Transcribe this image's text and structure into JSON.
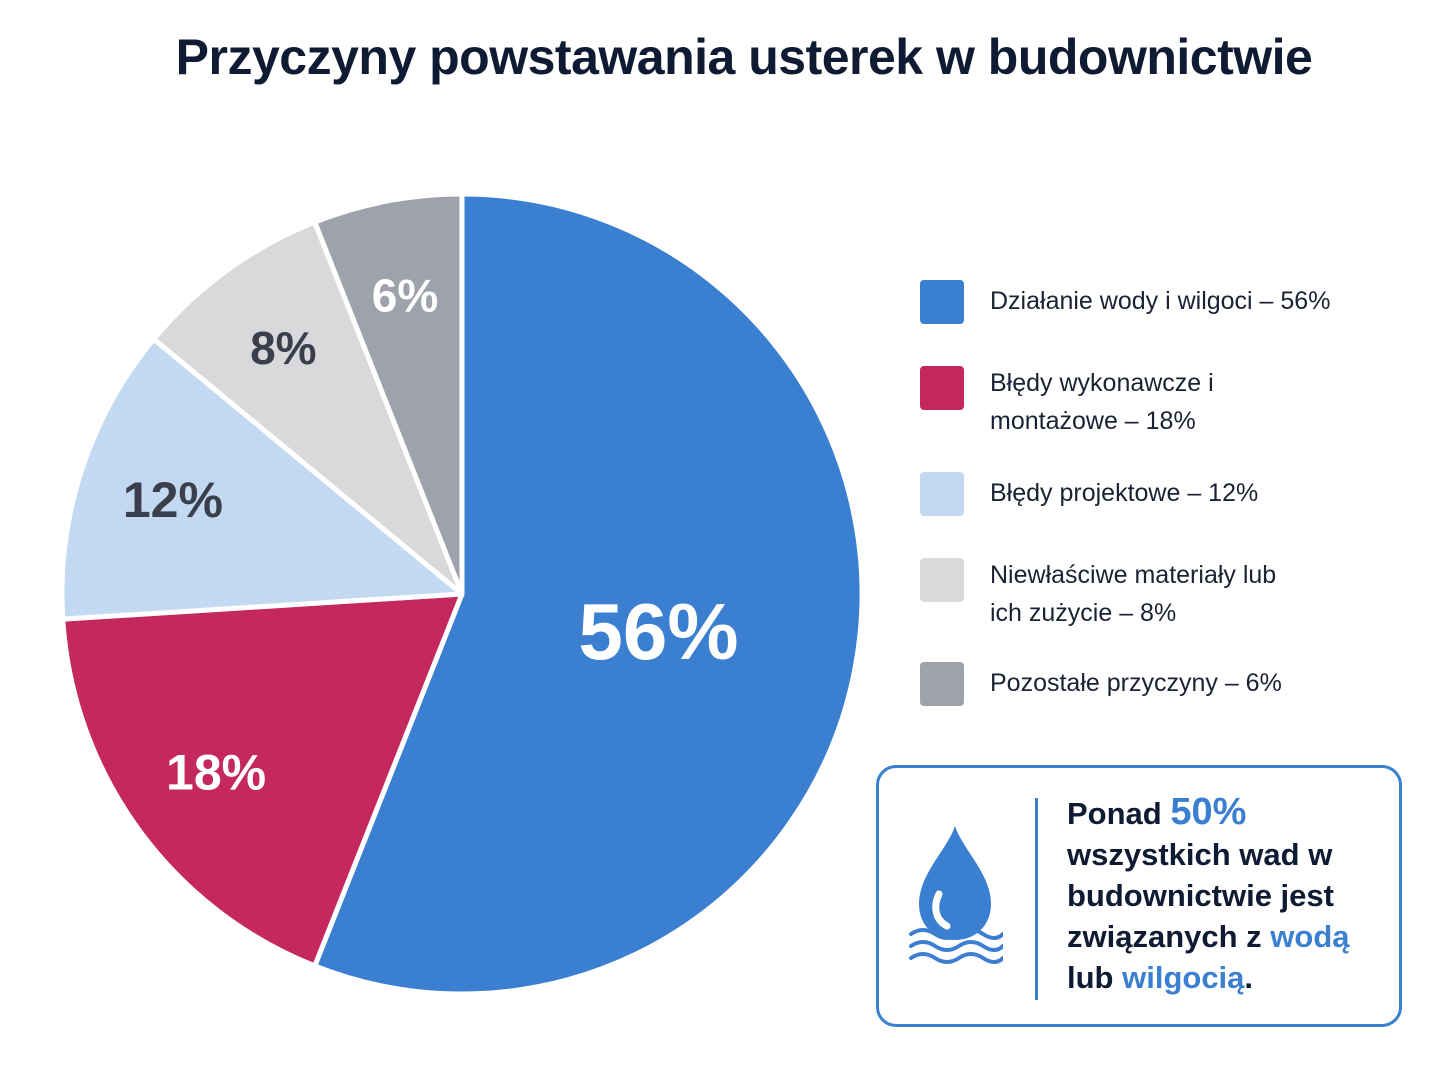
{
  "chart_data": {
    "type": "pie",
    "title": "Przyczyny powstawania usterek w budownictwie",
    "slices": [
      {
        "label": "Działanie wody i wilgoci – 56%",
        "value": 56,
        "display": "56%",
        "color": "#3b7fd1",
        "text_color": "#ffffff"
      },
      {
        "label": "Błędy wykonawcze i montażowe – 18%",
        "value": 18,
        "display": "18%",
        "color": "#c4285f",
        "text_color": "#ffffff"
      },
      {
        "label": "Błędy projektowe – 12%",
        "value": 12,
        "display": "12%",
        "color": "#c3d9f2",
        "text_color": "#3a3f4b"
      },
      {
        "label": "Niewłaściwe materiały lub ich zużycie – 8%",
        "value": 8,
        "display": "8%",
        "color": "#d9d9db",
        "text_color": "#3a3f4b"
      },
      {
        "label": "Pozostałe przyczyny – 6%",
        "value": 6,
        "display": "6%",
        "color": "#9ea3ab",
        "text_color": "#ffffff"
      }
    ],
    "legend": "right"
  },
  "callout": {
    "icon": "water-drop-icon",
    "t1": "Ponad ",
    "t2": "50%",
    "t3": " wszystkich wad w budownictwie jest związanych z ",
    "t4": "wodą",
    "t5": " lub ",
    "t6": "wilgocią",
    "t7": ".",
    "accent": "#3b7fd1"
  }
}
